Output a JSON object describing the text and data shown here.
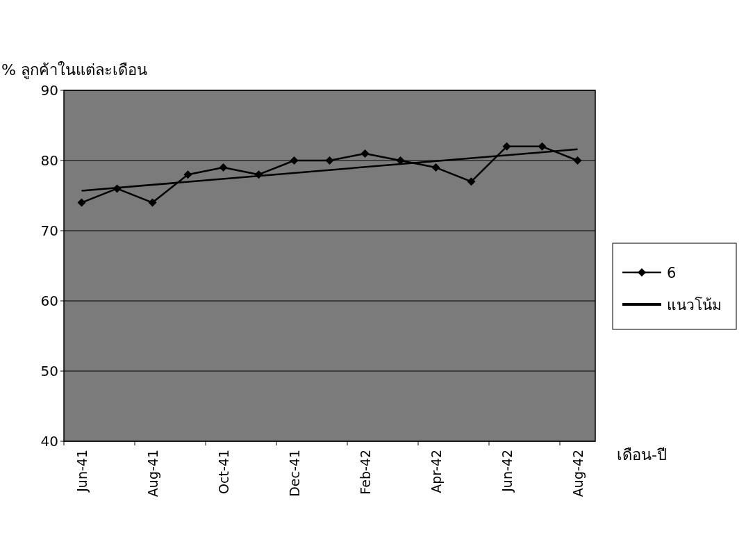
{
  "chart_data": {
    "type": "line",
    "ylabel": "% ลูกค้าในแต่ละเดือน",
    "xlabel": "เดือน-ปี",
    "categories": [
      "Jun-41",
      null,
      "Aug-41",
      null,
      "Oct-41",
      null,
      "Dec-41",
      null,
      "Feb-42",
      null,
      "Apr-42",
      null,
      "Jun-42",
      null,
      "Aug-42"
    ],
    "series": [
      {
        "name": "6",
        "color": "#000000",
        "marker": "diamond",
        "values": [
          74,
          76,
          74,
          78,
          79,
          78,
          80,
          80,
          81,
          80,
          79,
          77,
          82,
          82,
          80
        ]
      },
      {
        "name": "แนวโน้ม",
        "color": "#000000",
        "marker": "none",
        "x": [
          "Jun-41",
          "Aug-42"
        ],
        "values": [
          75.7,
          81.6
        ]
      }
    ],
    "ylim": [
      40,
      90
    ],
    "yticks": [
      40,
      50,
      60,
      70,
      80,
      90
    ],
    "grid": "y",
    "legend": "right"
  }
}
